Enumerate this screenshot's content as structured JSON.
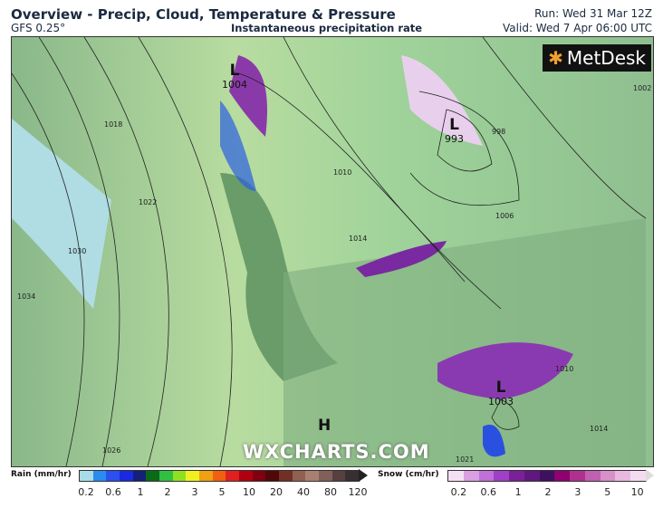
{
  "header": {
    "title": "Overview - Precip, Cloud, Temperature & Pressure",
    "model": "GFS 0.25°",
    "subtitle": "Instantaneous precipitation rate",
    "run": "Run: Wed 31 Mar 12Z",
    "valid": "Valid: Wed 7 Apr 06:00 UTC"
  },
  "logo": {
    "text": "MetDesk"
  },
  "watermark": "WXCHARTS.COM",
  "pressure_centres": [
    {
      "type": "L",
      "value": "1004"
    },
    {
      "type": "L",
      "value": "993"
    },
    {
      "type": "L",
      "value": "1003"
    },
    {
      "type": "H",
      "value": ""
    }
  ],
  "isobar_labels": [
    "1018",
    "1022",
    "1030",
    "1034",
    "1026",
    "1010",
    "1014",
    "1006",
    "998",
    "1002",
    "1014",
    "1010",
    "1021"
  ],
  "legend": {
    "rain_label": "Rain (mm/hr)",
    "rain_ticks": [
      "0.2",
      "0.6",
      "1",
      "2",
      "3",
      "5",
      "10",
      "20",
      "40",
      "80",
      "120"
    ],
    "rain_colors": [
      "#a8dce8",
      "#2a8cf0",
      "#2a50f0",
      "#1a2ae0",
      "#15207a",
      "#0a6a18",
      "#30c040",
      "#90e020",
      "#f0f020",
      "#f0a010",
      "#f06010",
      "#e02020",
      "#b00010",
      "#800010",
      "#500808",
      "#703028",
      "#906050",
      "#a88070",
      "#806058",
      "#584040",
      "#383030"
    ],
    "snow_label": "Snow (cm/hr)",
    "snow_ticks": [
      "0.2",
      "0.6",
      "1",
      "2",
      "3",
      "5",
      "10"
    ],
    "snow_colors": [
      "#f4e0f4",
      "#d8a0e0",
      "#c070d8",
      "#a040c8",
      "#7a2098",
      "#601880",
      "#401060",
      "#900070",
      "#b03090",
      "#c060b0",
      "#d890c8",
      "#e8b8e0",
      "#f4dcf0"
    ]
  }
}
